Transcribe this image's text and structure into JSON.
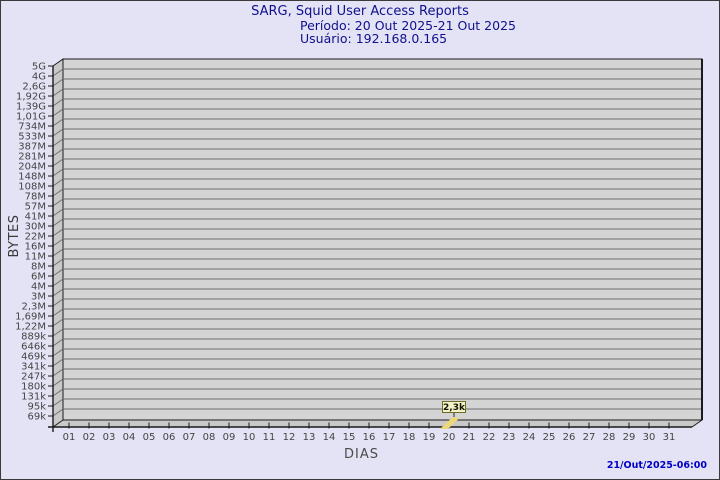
{
  "window": {
    "background": "#e3e3f5",
    "border_color": "#3a3a3a"
  },
  "header": {
    "title": "SARG, Squid User Access Reports",
    "period": "Período: 20 Out 2025-21 Out 2025",
    "user": "Usuário: 192.168.0.165",
    "color": "#10108c"
  },
  "footer": {
    "timestamp": "21/Out/2025-06:00",
    "color": "#0000c8"
  },
  "chart_data": {
    "type": "bar",
    "style": "3d-bar",
    "title": "SARG, Squid User Access Reports",
    "subtitle": [
      "Período: 20 Out 2025-21 Out 2025",
      "Usuário: 192.168.0.165"
    ],
    "xlabel": "DIAS",
    "ylabel": "BYTES",
    "y_scale": "log",
    "grid": true,
    "x_tick_labels": [
      "01",
      "02",
      "03",
      "04",
      "05",
      "06",
      "07",
      "08",
      "09",
      "10",
      "11",
      "12",
      "13",
      "14",
      "15",
      "16",
      "17",
      "18",
      "19",
      "20",
      "21",
      "22",
      "23",
      "24",
      "25",
      "26",
      "27",
      "28",
      "29",
      "30",
      "31"
    ],
    "y_tick_labels": [
      "5G",
      "4G",
      "2,6G",
      "1,92G",
      "1,39G",
      "1,01G",
      "734M",
      "533M",
      "387M",
      "281M",
      "204M",
      "148M",
      "108M",
      "78M",
      "57M",
      "41M",
      "30M",
      "22M",
      "16M",
      "11M",
      "8M",
      "6M",
      "4M",
      "3M",
      "2,3M",
      "1,69M",
      "1,22M",
      "889k",
      "646k",
      "469k",
      "341k",
      "247k",
      "180k",
      "131k",
      "95k",
      "69k"
    ],
    "points": [
      {
        "day": "20",
        "value_label": "2,3k",
        "value_bytes": 2300
      }
    ],
    "colors": {
      "plot_face": "#d4d4d4",
      "plot_wall": "#c9c9c9",
      "gridline": "#6e6e6e",
      "axis": "#1a1a1a",
      "tick_text": "#454545",
      "bar_fill": "#ecd87c",
      "annotation_bg": "#f2f2c6",
      "annotation_border": "#6b6b2a",
      "annotation_text": "#141400"
    }
  }
}
